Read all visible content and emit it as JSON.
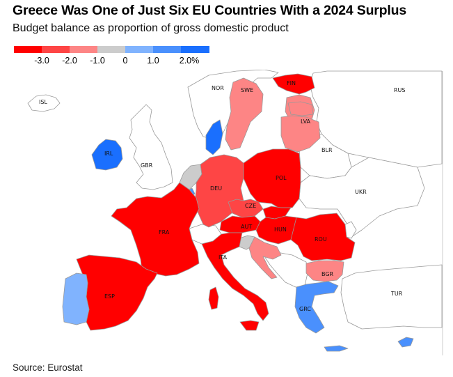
{
  "title": "Greece Was One of Just Six EU Countries With a 2024 Surplus",
  "subtitle": "Budget balance as proportion of gross domestic product",
  "source": "Source: Eurostat",
  "legend": {
    "ticks": [
      "-3.0",
      "-2.0",
      "-1.0",
      "0",
      "1.0",
      "2.0%"
    ],
    "bins": [
      {
        "color": "#ff0000",
        "range": "<= -3.0"
      },
      {
        "color": "#fe4545",
        "range": "-3.0 to -2.0"
      },
      {
        "color": "#fd8585",
        "range": "-2.0 to -1.0"
      },
      {
        "color": "#cccccc",
        "range": "-1.0 to 0"
      },
      {
        "color": "#80b3fe",
        "range": "0 to 1.0"
      },
      {
        "color": "#4a90fd",
        "range": "1.0 to 2.0"
      },
      {
        "color": "#1a6ffe",
        "range": ">= 2.0"
      }
    ]
  },
  "colors": {
    "deficit_large": "#ff0000",
    "deficit_mid": "#fe4545",
    "deficit_small": "#fd8585",
    "neutral": "#cccccc",
    "surplus_small": "#80b3fe",
    "surplus_mid": "#4a90fd",
    "surplus_large": "#1a6ffe",
    "non_eu": "#ffffff",
    "border": "#999999"
  },
  "map_labels": {
    "NOR": "NOR",
    "SWE": "SWE",
    "FIN": "FIN",
    "RUS": "RUS",
    "ISL": "ISL",
    "LVA": "LVA",
    "IRL": "IRL",
    "GBR": "GBR",
    "BLR": "BLR",
    "DEU": "DEU",
    "POL": "POL",
    "UKR": "UKR",
    "CZE": "CZE",
    "FRA": "FRA",
    "AUT": "AUT",
    "HUN": "HUN",
    "ROU": "ROU",
    "ITA": "ITA",
    "BGR": "BGR",
    "ESP": "ESP",
    "GRC": "GRC",
    "TUR": "TUR"
  }
}
